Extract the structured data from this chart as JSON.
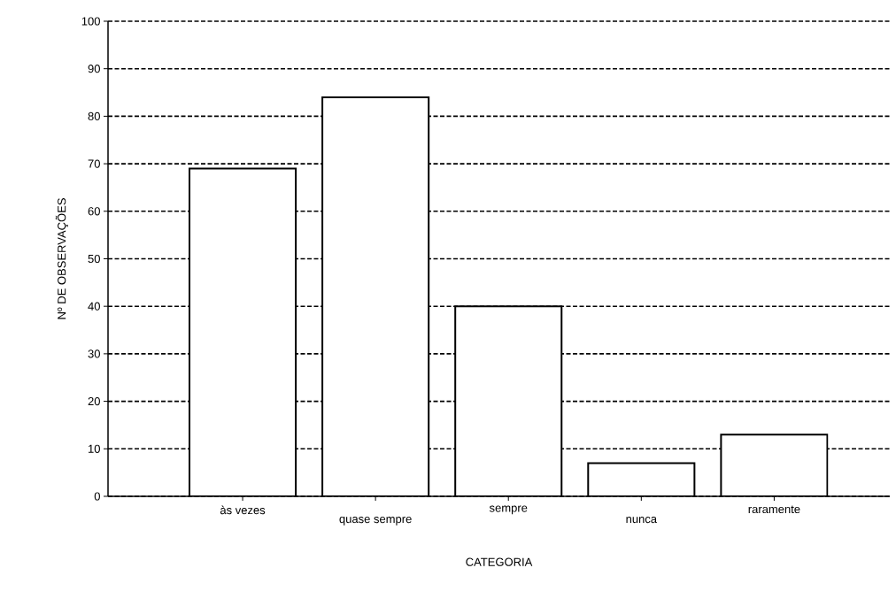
{
  "chart_data": {
    "type": "bar",
    "xlabel": "CATEGORIA",
    "ylabel": "Nº DE OBSERVAÇÕES",
    "categories": [
      "às vezes",
      "quase sempre",
      "sempre",
      "nunca",
      "raramente"
    ],
    "values": [
      69,
      84,
      40,
      7,
      13
    ],
    "color": "#ffffff",
    "ylim": [
      0,
      100
    ],
    "yticks": [
      0,
      10,
      20,
      30,
      40,
      50,
      60,
      70,
      80,
      90,
      100
    ],
    "grid": "y",
    "line_style": "dashed"
  }
}
